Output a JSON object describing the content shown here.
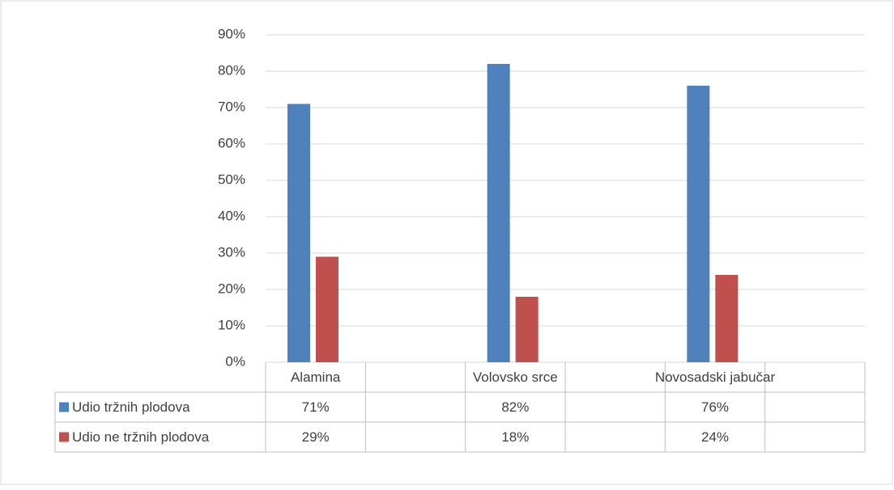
{
  "chart_data": {
    "type": "bar",
    "categories": [
      "Alamina",
      "Volovsko srce",
      "Novosadski jabučar"
    ],
    "series": [
      {
        "name": "Udio tržnih plodova",
        "color": "#4f81bd",
        "values": [
          71,
          82,
          76
        ],
        "value_labels": [
          "71%",
          "82%",
          "76%"
        ]
      },
      {
        "name": "Udio ne tržnih plodova",
        "color": "#c0504d",
        "values": [
          29,
          18,
          24
        ],
        "value_labels": [
          "29%",
          "18%",
          "24%"
        ]
      }
    ],
    "ylim": [
      0,
      90
    ],
    "yticks": [
      {
        "value": 0,
        "label": "0%"
      },
      {
        "value": 10,
        "label": "10%"
      },
      {
        "value": 20,
        "label": "20%"
      },
      {
        "value": 30,
        "label": "30%"
      },
      {
        "value": 40,
        "label": "40%"
      },
      {
        "value": 50,
        "label": "50%"
      },
      {
        "value": 60,
        "label": "60%"
      },
      {
        "value": 70,
        "label": "70%"
      },
      {
        "value": 80,
        "label": "80%"
      },
      {
        "value": 90,
        "label": "90%"
      }
    ],
    "grid": true
  }
}
